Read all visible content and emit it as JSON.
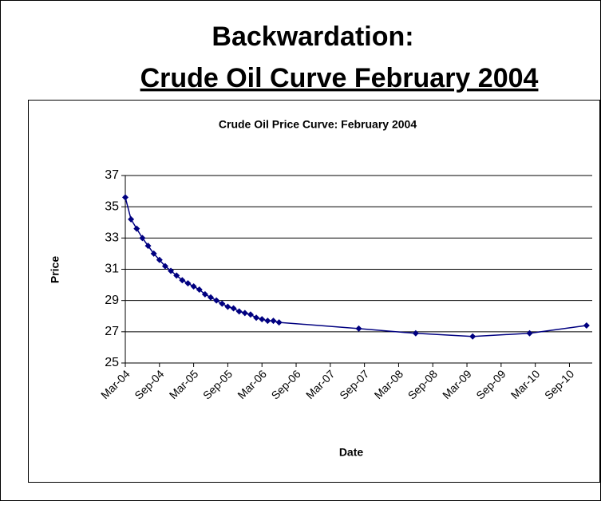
{
  "slide": {
    "title_lines": [
      "Backwardation:",
      "Crude Oil Curve February 2004"
    ]
  },
  "chart_data": {
    "type": "line",
    "title": "Crude Oil Price Curve: February 2004",
    "xlabel": "Date",
    "ylabel": "Price",
    "x": [
      "2004-03",
      "2004-04",
      "2004-05",
      "2004-06",
      "2004-07",
      "2004-08",
      "2004-09",
      "2004-10",
      "2004-11",
      "2004-12",
      "2005-01",
      "2005-02",
      "2005-03",
      "2005-04",
      "2005-05",
      "2005-06",
      "2005-07",
      "2005-08",
      "2005-09",
      "2005-10",
      "2005-11",
      "2005-12",
      "2006-01",
      "2006-02",
      "2006-03",
      "2006-04",
      "2006-05",
      "2006-06",
      "2007-08",
      "2008-06",
      "2009-04",
      "2010-02",
      "2010-12"
    ],
    "series": [
      {
        "name": "Price",
        "color": "#000080",
        "values": [
          35.6,
          34.2,
          33.6,
          33.0,
          32.5,
          32.0,
          31.6,
          31.2,
          30.9,
          30.6,
          30.3,
          30.1,
          29.9,
          29.7,
          29.4,
          29.2,
          29.0,
          28.8,
          28.6,
          28.5,
          28.3,
          28.2,
          28.1,
          27.9,
          27.8,
          27.7,
          27.7,
          27.6,
          27.2,
          26.9,
          26.7,
          26.9,
          27.4
        ]
      }
    ],
    "xlim": [
      "2004-03",
      "2011-01"
    ],
    "xticks": [
      {
        "value": "2004-03",
        "label": "Mar-04"
      },
      {
        "value": "2004-09",
        "label": "Sep-04"
      },
      {
        "value": "2005-03",
        "label": "Mar-05"
      },
      {
        "value": "2005-09",
        "label": "Sep-05"
      },
      {
        "value": "2006-03",
        "label": "Mar-06"
      },
      {
        "value": "2006-09",
        "label": "Sep-06"
      },
      {
        "value": "2007-03",
        "label": "Mar-07"
      },
      {
        "value": "2007-09",
        "label": "Sep-07"
      },
      {
        "value": "2008-03",
        "label": "Mar-08"
      },
      {
        "value": "2008-09",
        "label": "Sep-08"
      },
      {
        "value": "2009-03",
        "label": "Mar-09"
      },
      {
        "value": "2009-09",
        "label": "Sep-09"
      },
      {
        "value": "2010-03",
        "label": "Mar-10"
      },
      {
        "value": "2010-09",
        "label": "Sep-10"
      }
    ],
    "ylim": [
      25,
      37
    ],
    "yticks": [
      25,
      27,
      29,
      31,
      33,
      35,
      37
    ],
    "grid": true
  }
}
